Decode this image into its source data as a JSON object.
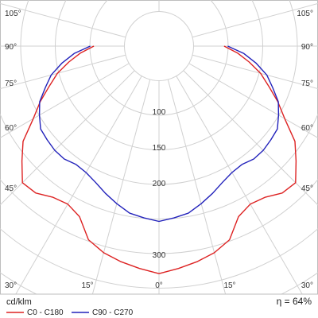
{
  "chart_data": {
    "type": "polar",
    "unit_label": "cd/klm",
    "efficiency_label": "η = 64%",
    "angle_tick_labels": {
      "top_row_left": "105°",
      "top_row_right": "105°",
      "left_side": [
        "90°",
        "75°",
        "60°",
        "45°"
      ],
      "right_side": [
        "90°",
        "75°",
        "60°",
        "45°"
      ],
      "bottom_row": [
        "30°",
        "15°",
        "0°",
        "15°",
        "30°"
      ]
    },
    "radial_ticks": [
      100,
      150,
      200,
      300
    ],
    "radial_tick_labels": [
      "100",
      "150",
      "200",
      "300"
    ],
    "series": [
      {
        "name": "C0 - C180",
        "color": "#dd2222",
        "points": [
          [
            0,
            318
          ],
          [
            5,
            312
          ],
          [
            10,
            306
          ],
          [
            15,
            299
          ],
          [
            20,
            288
          ],
          [
            25,
            263
          ],
          [
            30,
            255
          ],
          [
            35,
            258
          ],
          [
            40,
            268
          ],
          [
            45,
            270
          ],
          [
            50,
            250
          ],
          [
            55,
            232
          ],
          [
            60,
            203
          ],
          [
            65,
            183
          ],
          [
            70,
            163
          ],
          [
            75,
            147
          ],
          [
            80,
            128
          ],
          [
            85,
            110
          ],
          [
            90,
            91
          ]
        ]
      },
      {
        "name": "C90 - C270",
        "color": "#2222bb",
        "points": [
          [
            0,
            245
          ],
          [
            5,
            241
          ],
          [
            10,
            237
          ],
          [
            15,
            228
          ],
          [
            20,
            219
          ],
          [
            25,
            210
          ],
          [
            30,
            204
          ],
          [
            35,
            202
          ],
          [
            40,
            206
          ],
          [
            45,
            206
          ],
          [
            50,
            204
          ],
          [
            55,
            202
          ],
          [
            60,
            193
          ],
          [
            65,
            184
          ],
          [
            70,
            169
          ],
          [
            75,
            156
          ],
          [
            80,
            138
          ],
          [
            85,
            119
          ],
          [
            90,
            96
          ]
        ]
      }
    ]
  }
}
